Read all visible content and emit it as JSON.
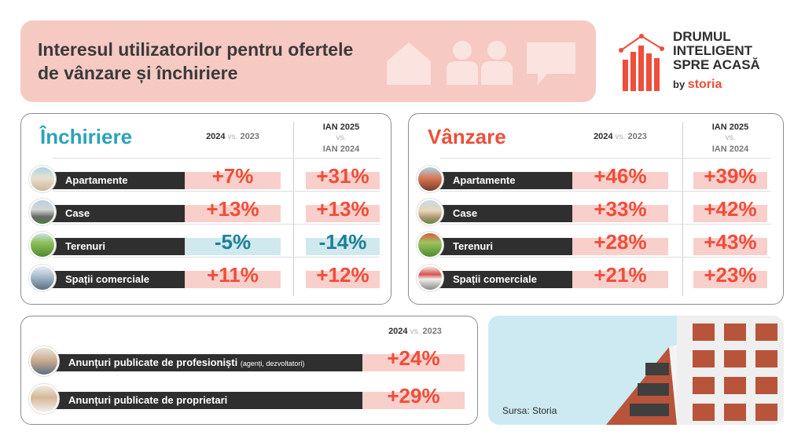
{
  "header": {
    "title": "Interesul utilizatorilor pentru ofertele de vânzare și închiriere",
    "logo_lines": [
      "DRUMUL",
      "INTELIGENT",
      "SPRE ACASĂ"
    ],
    "logo_by": "by",
    "logo_brand": "storia"
  },
  "column_headers": {
    "yoy": {
      "a": "2024",
      "vs": "vs.",
      "b": "2023"
    },
    "jan": {
      "a": "IAN 2025",
      "vs": "vs.",
      "b": "IAN 2024"
    }
  },
  "inchiriere": {
    "title": "Închiriere",
    "rows": [
      {
        "label": "Apartamente",
        "yoy": "+7%",
        "jan": "+31%"
      },
      {
        "label": "Case",
        "yoy": "+13%",
        "jan": "+13%"
      },
      {
        "label": "Terenuri",
        "yoy": "-5%",
        "jan": "-14%"
      },
      {
        "label": "Spații comerciale",
        "yoy": "+11%",
        "jan": "+12%"
      }
    ]
  },
  "vanzare": {
    "title": "Vânzare",
    "rows": [
      {
        "label": "Apartamente",
        "yoy": "+46%",
        "jan": "+39%"
      },
      {
        "label": "Case",
        "yoy": "+33%",
        "jan": "+42%"
      },
      {
        "label": "Terenuri",
        "yoy": "+28%",
        "jan": "+43%"
      },
      {
        "label": "Spații comerciale",
        "yoy": "+21%",
        "jan": "+23%"
      }
    ]
  },
  "anunturi": {
    "rows": [
      {
        "label": "Anunțuri publicate de profesioniști",
        "note": "(agenți, dezvoltatori)",
        "yoy": "+24%"
      },
      {
        "label": "Anunțuri publicate de proprietari",
        "note": "",
        "yoy": "+29%"
      }
    ]
  },
  "source": "Sursa: Storia",
  "colors": {
    "accent": "#ee4e3b",
    "positive_bg": "#f8cfca",
    "negative_bg": "#cfe9ee",
    "negative_text": "#1f7f94",
    "inchiriere_title": "#2ba3b8",
    "vanzare_title": "#ee4e3b"
  },
  "icons": {
    "header": [
      "house-icon",
      "people-icon",
      "chat-bubble-icon"
    ],
    "logo": "bar-chart-house-icon"
  }
}
